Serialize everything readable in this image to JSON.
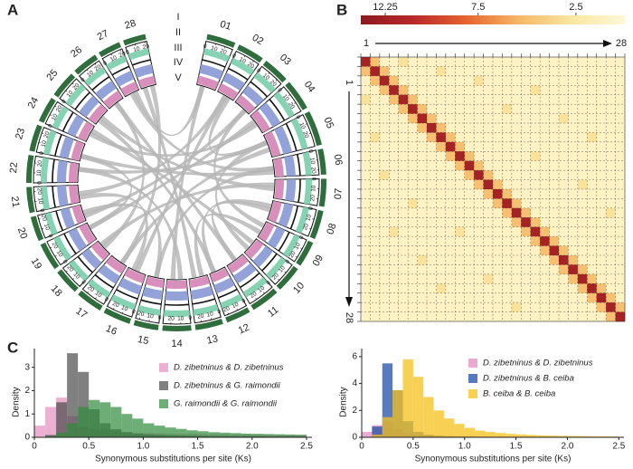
{
  "chart_data": [
    {
      "type": "circos",
      "panel": "A",
      "chromosomes": [
        "01",
        "02",
        "03",
        "04",
        "05",
        "06",
        "07",
        "08",
        "09",
        "10",
        "11",
        "12",
        "13",
        "14",
        "15",
        "16",
        "17",
        "18",
        "19",
        "20",
        "21",
        "22",
        "23",
        "24",
        "25",
        "26",
        "27",
        "28"
      ],
      "lengths": [
        28,
        26,
        26,
        30,
        34,
        25,
        27,
        28,
        25,
        26,
        28,
        24,
        27,
        28,
        24,
        27,
        26,
        25,
        27,
        24,
        25,
        27,
        26,
        25,
        26,
        25,
        22,
        22
      ],
      "chrom_ticks": [
        0,
        10,
        20
      ],
      "ring_labels": [
        "I",
        "II",
        "III",
        "IV",
        "V"
      ],
      "links": [
        [
          1,
          14
        ],
        [
          2,
          21
        ],
        [
          3,
          20
        ],
        [
          4,
          19
        ],
        [
          4,
          24
        ],
        [
          5,
          17
        ],
        [
          5,
          22
        ],
        [
          6,
          15
        ],
        [
          6,
          23
        ],
        [
          7,
          18
        ],
        [
          8,
          11
        ],
        [
          9,
          13
        ],
        [
          10,
          24
        ],
        [
          11,
          26
        ],
        [
          12,
          25
        ],
        [
          1,
          27
        ],
        [
          2,
          16
        ],
        [
          3,
          9
        ],
        [
          5,
          10
        ],
        [
          7,
          25
        ],
        [
          13,
          28
        ],
        [
          14,
          22
        ],
        [
          15,
          20
        ],
        [
          16,
          21
        ],
        [
          17,
          28
        ],
        [
          18,
          26
        ],
        [
          19,
          23
        ],
        [
          8,
          12
        ],
        [
          6,
          27
        ],
        [
          2,
          5
        ]
      ]
    },
    {
      "type": "heatmap",
      "panel": "B",
      "clim": [
        13.5,
        0
      ],
      "colorbar_ticks": [
        12.25,
        7.5,
        2.5
      ],
      "colormap": [
        "#fdf8d8",
        "#fbe7a2",
        "#f6b867",
        "#e6652f",
        "#b8282a",
        "#8e1a1f"
      ],
      "axis_labels": {
        "start": "1",
        "end": "28"
      },
      "matrix": [
        [
          12,
          5,
          1,
          1,
          3,
          1,
          1,
          1,
          1,
          1,
          1,
          1,
          1,
          1,
          1,
          1,
          1,
          1,
          1,
          1,
          1,
          1,
          1,
          1,
          1,
          1,
          1,
          1
        ],
        [
          5,
          12,
          5,
          1,
          1,
          1,
          1,
          1,
          3,
          1,
          1,
          1,
          1,
          1,
          1,
          1,
          1,
          1,
          1,
          1,
          1,
          1,
          1,
          1,
          1,
          1,
          1,
          1
        ],
        [
          1,
          5,
          12,
          5,
          1,
          1,
          1,
          1,
          1,
          1,
          1,
          1,
          3,
          1,
          1,
          1,
          1,
          1,
          1,
          1,
          1,
          1,
          1,
          1,
          1,
          1,
          1,
          1
        ],
        [
          1,
          1,
          5,
          12,
          5,
          1,
          1,
          1,
          1,
          1,
          1,
          1,
          1,
          1,
          1,
          1,
          1,
          1,
          3,
          1,
          1,
          1,
          1,
          1,
          1,
          1,
          1,
          1
        ],
        [
          3,
          1,
          1,
          5,
          12,
          5,
          1,
          1,
          1,
          1,
          1,
          1,
          1,
          1,
          1,
          1,
          1,
          1,
          1,
          1,
          1,
          1,
          1,
          1,
          1,
          1,
          1,
          1
        ],
        [
          1,
          1,
          1,
          1,
          5,
          12,
          5,
          1,
          1,
          1,
          1,
          1,
          1,
          1,
          1,
          3,
          1,
          1,
          1,
          1,
          1,
          1,
          1,
          1,
          1,
          1,
          1,
          1
        ],
        [
          1,
          1,
          1,
          1,
          1,
          5,
          12,
          5,
          1,
          1,
          1,
          1,
          1,
          1,
          1,
          1,
          1,
          1,
          1,
          1,
          1,
          3,
          1,
          1,
          1,
          1,
          1,
          1
        ],
        [
          1,
          1,
          1,
          1,
          1,
          1,
          5,
          12,
          5,
          1,
          1,
          1,
          1,
          1,
          1,
          1,
          1,
          1,
          1,
          1,
          1,
          1,
          1,
          1,
          1,
          1,
          1,
          1
        ],
        [
          1,
          3,
          1,
          1,
          1,
          1,
          1,
          5,
          12,
          5,
          1,
          1,
          1,
          1,
          1,
          1,
          1,
          1,
          1,
          1,
          1,
          1,
          1,
          1,
          3,
          1,
          1,
          1
        ],
        [
          1,
          1,
          1,
          1,
          1,
          1,
          1,
          1,
          5,
          12,
          5,
          1,
          1,
          1,
          1,
          1,
          1,
          1,
          1,
          1,
          1,
          1,
          1,
          1,
          1,
          1,
          1,
          1
        ],
        [
          1,
          1,
          1,
          1,
          1,
          1,
          1,
          1,
          1,
          5,
          12,
          5,
          1,
          1,
          1,
          1,
          1,
          1,
          3,
          1,
          1,
          1,
          1,
          1,
          1,
          1,
          1,
          1
        ],
        [
          1,
          1,
          1,
          1,
          1,
          1,
          1,
          1,
          1,
          1,
          5,
          12,
          5,
          1,
          1,
          1,
          1,
          1,
          1,
          1,
          1,
          1,
          1,
          1,
          1,
          1,
          1,
          1
        ],
        [
          1,
          1,
          3,
          1,
          1,
          1,
          1,
          1,
          1,
          1,
          1,
          5,
          12,
          5,
          1,
          1,
          1,
          1,
          1,
          1,
          1,
          1,
          1,
          1,
          1,
          1,
          1,
          1
        ],
        [
          1,
          1,
          1,
          1,
          1,
          1,
          1,
          1,
          1,
          1,
          1,
          1,
          5,
          12,
          5,
          1,
          1,
          1,
          1,
          1,
          1,
          1,
          1,
          3,
          1,
          1,
          1,
          1
        ],
        [
          1,
          1,
          1,
          1,
          1,
          1,
          1,
          1,
          1,
          1,
          1,
          1,
          1,
          5,
          12,
          5,
          1,
          1,
          1,
          1,
          1,
          1,
          1,
          1,
          1,
          1,
          1,
          1
        ],
        [
          1,
          1,
          1,
          1,
          1,
          3,
          1,
          1,
          1,
          1,
          1,
          1,
          1,
          1,
          5,
          12,
          5,
          1,
          1,
          1,
          1,
          1,
          1,
          1,
          1,
          1,
          1,
          1
        ],
        [
          1,
          1,
          1,
          1,
          1,
          1,
          1,
          1,
          1,
          1,
          1,
          1,
          1,
          1,
          1,
          5,
          12,
          5,
          1,
          1,
          1,
          1,
          1,
          1,
          1,
          1,
          3,
          1
        ],
        [
          1,
          1,
          1,
          1,
          1,
          1,
          1,
          1,
          1,
          1,
          1,
          1,
          1,
          1,
          1,
          1,
          5,
          12,
          5,
          1,
          1,
          1,
          1,
          1,
          1,
          1,
          1,
          1
        ],
        [
          1,
          1,
          1,
          3,
          1,
          1,
          1,
          1,
          1,
          1,
          3,
          1,
          1,
          1,
          1,
          1,
          1,
          5,
          12,
          5,
          1,
          1,
          1,
          1,
          1,
          1,
          1,
          1
        ],
        [
          1,
          1,
          1,
          1,
          1,
          1,
          1,
          1,
          1,
          1,
          1,
          1,
          1,
          1,
          1,
          1,
          1,
          1,
          5,
          12,
          5,
          1,
          1,
          1,
          1,
          1,
          1,
          1
        ],
        [
          1,
          1,
          1,
          1,
          1,
          1,
          1,
          1,
          1,
          1,
          1,
          1,
          1,
          1,
          1,
          1,
          1,
          1,
          1,
          5,
          12,
          5,
          1,
          1,
          1,
          1,
          1,
          1
        ],
        [
          1,
          1,
          1,
          1,
          1,
          1,
          3,
          1,
          1,
          1,
          1,
          1,
          1,
          1,
          1,
          1,
          1,
          1,
          1,
          1,
          5,
          12,
          5,
          1,
          1,
          1,
          1,
          1
        ],
        [
          1,
          1,
          1,
          1,
          1,
          1,
          1,
          1,
          1,
          1,
          1,
          1,
          1,
          1,
          1,
          1,
          1,
          1,
          1,
          1,
          1,
          5,
          12,
          5,
          1,
          1,
          1,
          1
        ],
        [
          1,
          1,
          1,
          1,
          1,
          1,
          1,
          1,
          1,
          1,
          1,
          1,
          1,
          3,
          1,
          1,
          1,
          1,
          1,
          1,
          1,
          1,
          5,
          12,
          5,
          1,
          1,
          1
        ],
        [
          1,
          1,
          1,
          1,
          1,
          1,
          1,
          1,
          3,
          1,
          1,
          1,
          1,
          1,
          1,
          1,
          1,
          1,
          1,
          1,
          1,
          1,
          1,
          5,
          12,
          5,
          1,
          1
        ],
        [
          1,
          1,
          1,
          1,
          1,
          1,
          1,
          1,
          1,
          1,
          1,
          1,
          1,
          1,
          1,
          1,
          1,
          1,
          1,
          1,
          1,
          1,
          1,
          1,
          5,
          12,
          5,
          1
        ],
        [
          1,
          1,
          1,
          1,
          1,
          1,
          1,
          1,
          1,
          1,
          1,
          1,
          1,
          1,
          1,
          1,
          3,
          1,
          1,
          1,
          1,
          1,
          1,
          1,
          1,
          5,
          12,
          5
        ],
        [
          1,
          1,
          1,
          1,
          1,
          1,
          1,
          1,
          1,
          1,
          1,
          1,
          1,
          1,
          1,
          1,
          1,
          1,
          1,
          1,
          1,
          1,
          1,
          1,
          1,
          1,
          5,
          12
        ]
      ]
    },
    {
      "type": "histogram",
      "panel": "C",
      "xlabel": "Synonymous substitutions per site (Ks)",
      "ylabel": "Density",
      "bins": [
        0,
        0.1,
        0.2,
        0.3,
        0.4,
        0.5,
        0.6,
        0.7,
        0.8,
        0.9,
        1.0,
        1.1,
        1.2,
        1.3,
        1.4,
        1.5,
        1.6,
        1.7,
        1.8,
        1.9,
        2.0,
        2.1,
        2.2,
        2.3,
        2.4,
        2.5
      ],
      "xlim": [
        0,
        2.55
      ],
      "ylim": [
        0,
        3.8
      ],
      "xticks": [
        0,
        0.5,
        {
          "value": 1.0,
          "label": "1.0"
        },
        1.5,
        {
          "value": 2.0,
          "label": "2.0"
        },
        2.5
      ],
      "yticks": [
        0,
        1,
        2,
        3
      ],
      "opacity": 0.7,
      "series": [
        {
          "name": "D. zibetninus & D. zibetninus",
          "color": "#e48ec0",
          "values": [
            0.5,
            1.3,
            1.7,
            0.9,
            0.45,
            0.35,
            0.3,
            0.25,
            0.22,
            0.2,
            0.18,
            0.17,
            0.16,
            0.15,
            0.15,
            0.14,
            0.13,
            0.13,
            0.12,
            0.12,
            0.11,
            0.11,
            0.1,
            0.1,
            0.1
          ]
        },
        {
          "name": "D. zibetninus & G. raimondii",
          "color": "#4a4a4a",
          "values": [
            0,
            0.1,
            1.5,
            3.6,
            2.8,
            1.2,
            0.6,
            0.35,
            0.22,
            0.15,
            0.12,
            0.1,
            0.08,
            0.07,
            0.06,
            0.06,
            0.05,
            0.05,
            0.04,
            0.04,
            0.04,
            0.03,
            0.03,
            0.03,
            0.03
          ]
        },
        {
          "name": "G. raimondii & G. raimondii",
          "color": "#2e8b3a",
          "values": [
            0,
            0.05,
            0.2,
            0.6,
            1.3,
            1.6,
            1.5,
            1.3,
            1.0,
            0.8,
            0.6,
            0.5,
            0.42,
            0.36,
            0.3,
            0.26,
            0.22,
            0.2,
            0.18,
            0.16,
            0.15,
            0.14,
            0.13,
            0.12,
            0.11
          ]
        }
      ]
    },
    {
      "type": "histogram",
      "xlabel": "Synonymous substitutions per site (Ks)",
      "ylabel": "Density",
      "bins": [
        0,
        0.1,
        0.2,
        0.3,
        0.4,
        0.5,
        0.6,
        0.7,
        0.8,
        0.9,
        1.0,
        1.1,
        1.2,
        1.3,
        1.4,
        1.5,
        1.6,
        1.7,
        1.8,
        1.9,
        2.0,
        2.1,
        2.2,
        2.3,
        2.4,
        2.5
      ],
      "xlim": [
        0,
        2.55
      ],
      "ylim": [
        0,
        6.6
      ],
      "xticks": [
        0,
        0.5,
        {
          "value": 1.0,
          "label": "1.0"
        },
        1.5,
        {
          "value": 2.0,
          "label": "2.0"
        },
        2.5
      ],
      "yticks": [
        0,
        2,
        4,
        6
      ],
      "opacity": 0.75,
      "series": [
        {
          "name": "D. zibetninus & D. zibetninus",
          "color": "#e48ec0",
          "values": [
            0.4,
            0.9,
            1.2,
            0.6,
            0.3,
            0.2,
            0.15,
            0.12,
            0.1,
            0.1,
            0.09,
            0.08,
            0.08,
            0.07,
            0.07,
            0.06,
            0.06,
            0.05,
            0.05,
            0.05,
            0.04,
            0.04,
            0.04,
            0.04,
            0.04
          ]
        },
        {
          "name": "D. zibetninus & B. ceiba",
          "color": "#1f4fa8",
          "values": [
            0,
            0.8,
            5.5,
            3.5,
            1.2,
            0.4,
            0.2,
            0.12,
            0.08,
            0.06,
            0.05,
            0.04,
            0.03,
            0.03,
            0.02,
            0.02,
            0.02,
            0.02,
            0.02,
            0.01,
            0.01,
            0.01,
            0.01,
            0.01,
            0.01
          ]
        },
        {
          "name": "B. ceiba & B. ceiba",
          "color": "#f5c21b",
          "values": [
            0,
            0.2,
            1.5,
            3.5,
            5.8,
            4.5,
            3.0,
            2.0,
            1.4,
            1.0,
            0.7,
            0.5,
            0.4,
            0.32,
            0.26,
            0.22,
            0.18,
            0.15,
            0.13,
            0.11,
            0.1,
            0.09,
            0.08,
            0.07,
            0.06
          ]
        }
      ]
    }
  ]
}
